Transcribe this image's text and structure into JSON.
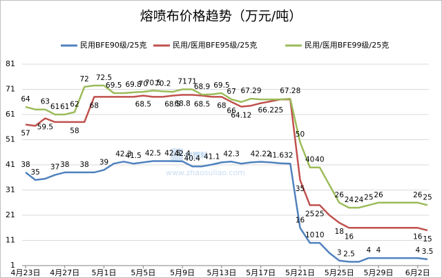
{
  "chart_data": {
    "type": "line",
    "title": "熔喷布价格趋势（万元/吨）",
    "watermark": {
      "text": "找塑料",
      "url": "www.zhaosuliao.com"
    },
    "legend": "top",
    "grid": true,
    "ylim": [
      1,
      81
    ],
    "yticks": [
      1,
      11,
      21,
      31,
      41,
      51,
      61,
      71,
      81
    ],
    "categories": [
      "4月23日",
      null,
      null,
      null,
      "4月27日",
      null,
      null,
      null,
      "5月1日",
      null,
      null,
      null,
      "5月5日",
      null,
      null,
      null,
      "5月9日",
      null,
      null,
      null,
      "5月13日",
      null,
      null,
      null,
      "5月17日",
      null,
      null,
      null,
      "5月21日",
      null,
      null,
      null,
      "5月25日",
      null,
      null,
      null,
      "5月29日",
      null,
      null,
      null,
      "6月2日",
      null
    ],
    "series": [
      {
        "name": "民用BFE90级/25克",
        "color": "#4f81bd",
        "values": [
          38,
          35,
          35.5,
          37,
          38,
          38,
          38,
          38,
          39,
          41.5,
          42.3,
          41.5,
          42,
          42.5,
          42.5,
          42.5,
          42.4,
          40.4,
          40.4,
          41.1,
          42,
          42.3,
          41.5,
          42,
          42.22,
          42,
          41.632,
          41.5,
          16,
          10,
          10,
          6,
          3,
          2.5,
          2.5,
          4,
          4,
          4,
          4,
          4,
          4,
          3.5
        ],
        "value_labels": [
          "38",
          "35",
          null,
          "37",
          "38",
          null,
          "38",
          null,
          "39",
          null,
          "42.3",
          "41.5",
          null,
          "42.5",
          null,
          "42.5",
          "42.4",
          "40.4",
          null,
          "41.1",
          null,
          "42.3",
          null,
          null,
          "42.22",
          null,
          "41.632",
          null,
          "16",
          "10",
          "10",
          null,
          "3",
          "2.5",
          null,
          "4",
          "4",
          null,
          null,
          null,
          "4",
          "3.5"
        ]
      },
      {
        "name": "民用/医用BFE95级/25克",
        "color": "#c0504d",
        "values": [
          57,
          56.5,
          59.5,
          58,
          58,
          58,
          58,
          68,
          68,
          68,
          68,
          68,
          68.5,
          68,
          68,
          68.5,
          68.8,
          68.8,
          68.5,
          68,
          68,
          66,
          64.12,
          64.5,
          65.5,
          66.225,
          67,
          67,
          35,
          25,
          25,
          21,
          18,
          16,
          16,
          16,
          16,
          16,
          16,
          16,
          16,
          15
        ],
        "value_labels": [
          "57",
          null,
          "59.5",
          null,
          null,
          "58",
          null,
          "68",
          null,
          null,
          null,
          null,
          "68.5",
          null,
          null,
          "68.5",
          "68.8",
          null,
          "68.5",
          null,
          "68",
          "66",
          "64.12",
          null,
          null,
          "66.225",
          null,
          null,
          "35",
          "25",
          "25",
          null,
          "18",
          "16",
          null,
          null,
          null,
          null,
          null,
          null,
          "16",
          "15"
        ]
      },
      {
        "name": "民用/医用BFE99级/25克",
        "color": "#9bbb59",
        "values": [
          64,
          63,
          63,
          61,
          61,
          62,
          72,
          72.5,
          72.5,
          69.5,
          69.5,
          69.8,
          70,
          70.5,
          70.2,
          70,
          71,
          71,
          68.9,
          69,
          69.5,
          67,
          66,
          67.29,
          67,
          67,
          67,
          67.28,
          50,
          40,
          40,
          33,
          26,
          24,
          24,
          25,
          26,
          26,
          26,
          26,
          26,
          25
        ],
        "value_labels": [
          "64",
          null,
          "63",
          "61",
          "61",
          "62",
          "72",
          null,
          "72.5",
          "69.5",
          null,
          "69.8",
          "70",
          "70.5",
          "70.2",
          null,
          "71",
          "71",
          "68.9",
          null,
          "69.5",
          "67",
          null,
          "67.29",
          null,
          null,
          null,
          "67.28",
          "50",
          "40",
          "40",
          null,
          "26",
          "24",
          "24",
          "25",
          "26",
          null,
          null,
          null,
          "26",
          "25"
        ]
      }
    ]
  }
}
